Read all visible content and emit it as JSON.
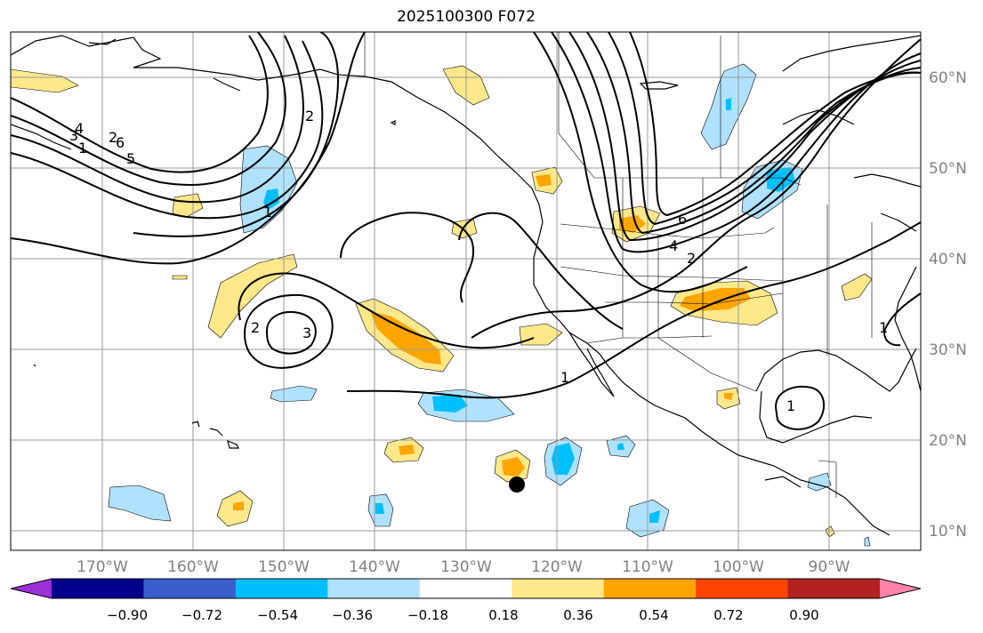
{
  "title": "2025100300 F072",
  "lon_labels": [
    "170°W",
    "160°W",
    "150°W",
    "140°W",
    "130°W",
    "120°W",
    "110°W",
    "100°W",
    "90°W"
  ],
  "lat_labels": [
    "60°N",
    "50°N",
    "40°N",
    "30°N",
    "20°N",
    "10°N"
  ],
  "colorbar": {
    "colors": [
      "#9b30d9",
      "#00008b",
      "#3a5fcd",
      "#00bfff",
      "#b0e2ff",
      "#ffffff",
      "#fde88a",
      "#ffa500",
      "#ff4500",
      "#b22222",
      "#ff82ab"
    ],
    "ticks": [
      "−0.90",
      "−0.72",
      "−0.54",
      "−0.36",
      "−0.18",
      "0.18",
      "0.36",
      "0.54",
      "0.72",
      "0.90"
    ]
  },
  "contour_labels": [
    "1",
    "2",
    "3",
    "4",
    "5",
    "6",
    "1",
    "2",
    "1",
    "2",
    "3",
    "4",
    "6",
    "2",
    "1",
    "1"
  ],
  "marker": {
    "label": "storm-position-dot",
    "lat": 15.2,
    "lon": -124.5
  }
}
